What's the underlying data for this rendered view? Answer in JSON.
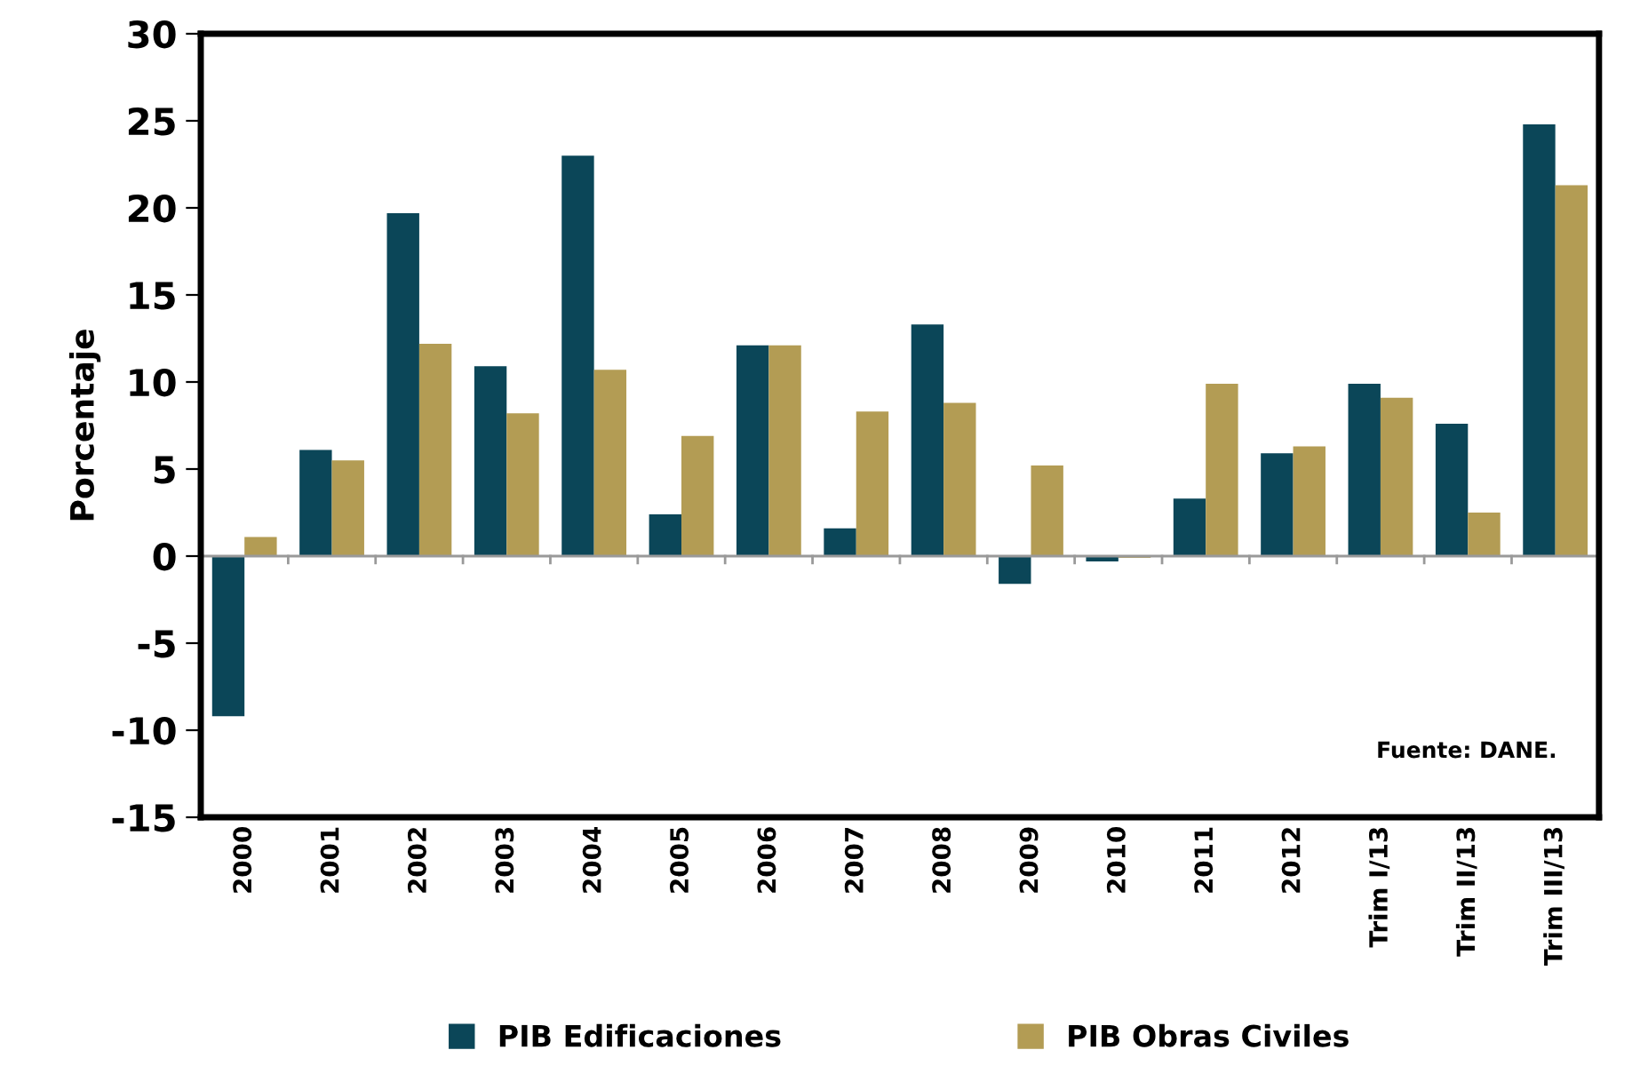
{
  "chart_data": {
    "type": "bar",
    "ylabel": "Porcentaje",
    "categories": [
      "2000",
      "2001",
      "2002",
      "2003",
      "2004",
      "2005",
      "2006",
      "2007",
      "2008",
      "2009",
      "2010",
      "2011",
      "2012",
      "Trim I/13",
      "Trim II/13",
      "Trim III/13"
    ],
    "series": [
      {
        "name": "PIB Edificaciones",
        "color": "#0b4658",
        "values": [
          -9.2,
          6.1,
          19.7,
          10.9,
          23.0,
          2.4,
          12.1,
          1.6,
          13.3,
          -1.6,
          -0.3,
          3.3,
          5.9,
          9.9,
          7.6,
          24.8
        ]
      },
      {
        "name": "PIB Obras Civiles",
        "color": "#b39c54",
        "values": [
          1.1,
          5.5,
          12.2,
          8.2,
          10.7,
          6.9,
          12.1,
          8.3,
          8.8,
          5.2,
          -0.1,
          9.9,
          6.3,
          9.1,
          2.5,
          21.3
        ]
      }
    ],
    "ylim": [
      -15,
      30
    ],
    "yticks": [
      -15,
      -10,
      -5,
      0,
      5,
      10,
      15,
      20,
      25,
      30
    ],
    "legend": "bottom",
    "annotations": [
      "Fuente: DANE."
    ]
  }
}
